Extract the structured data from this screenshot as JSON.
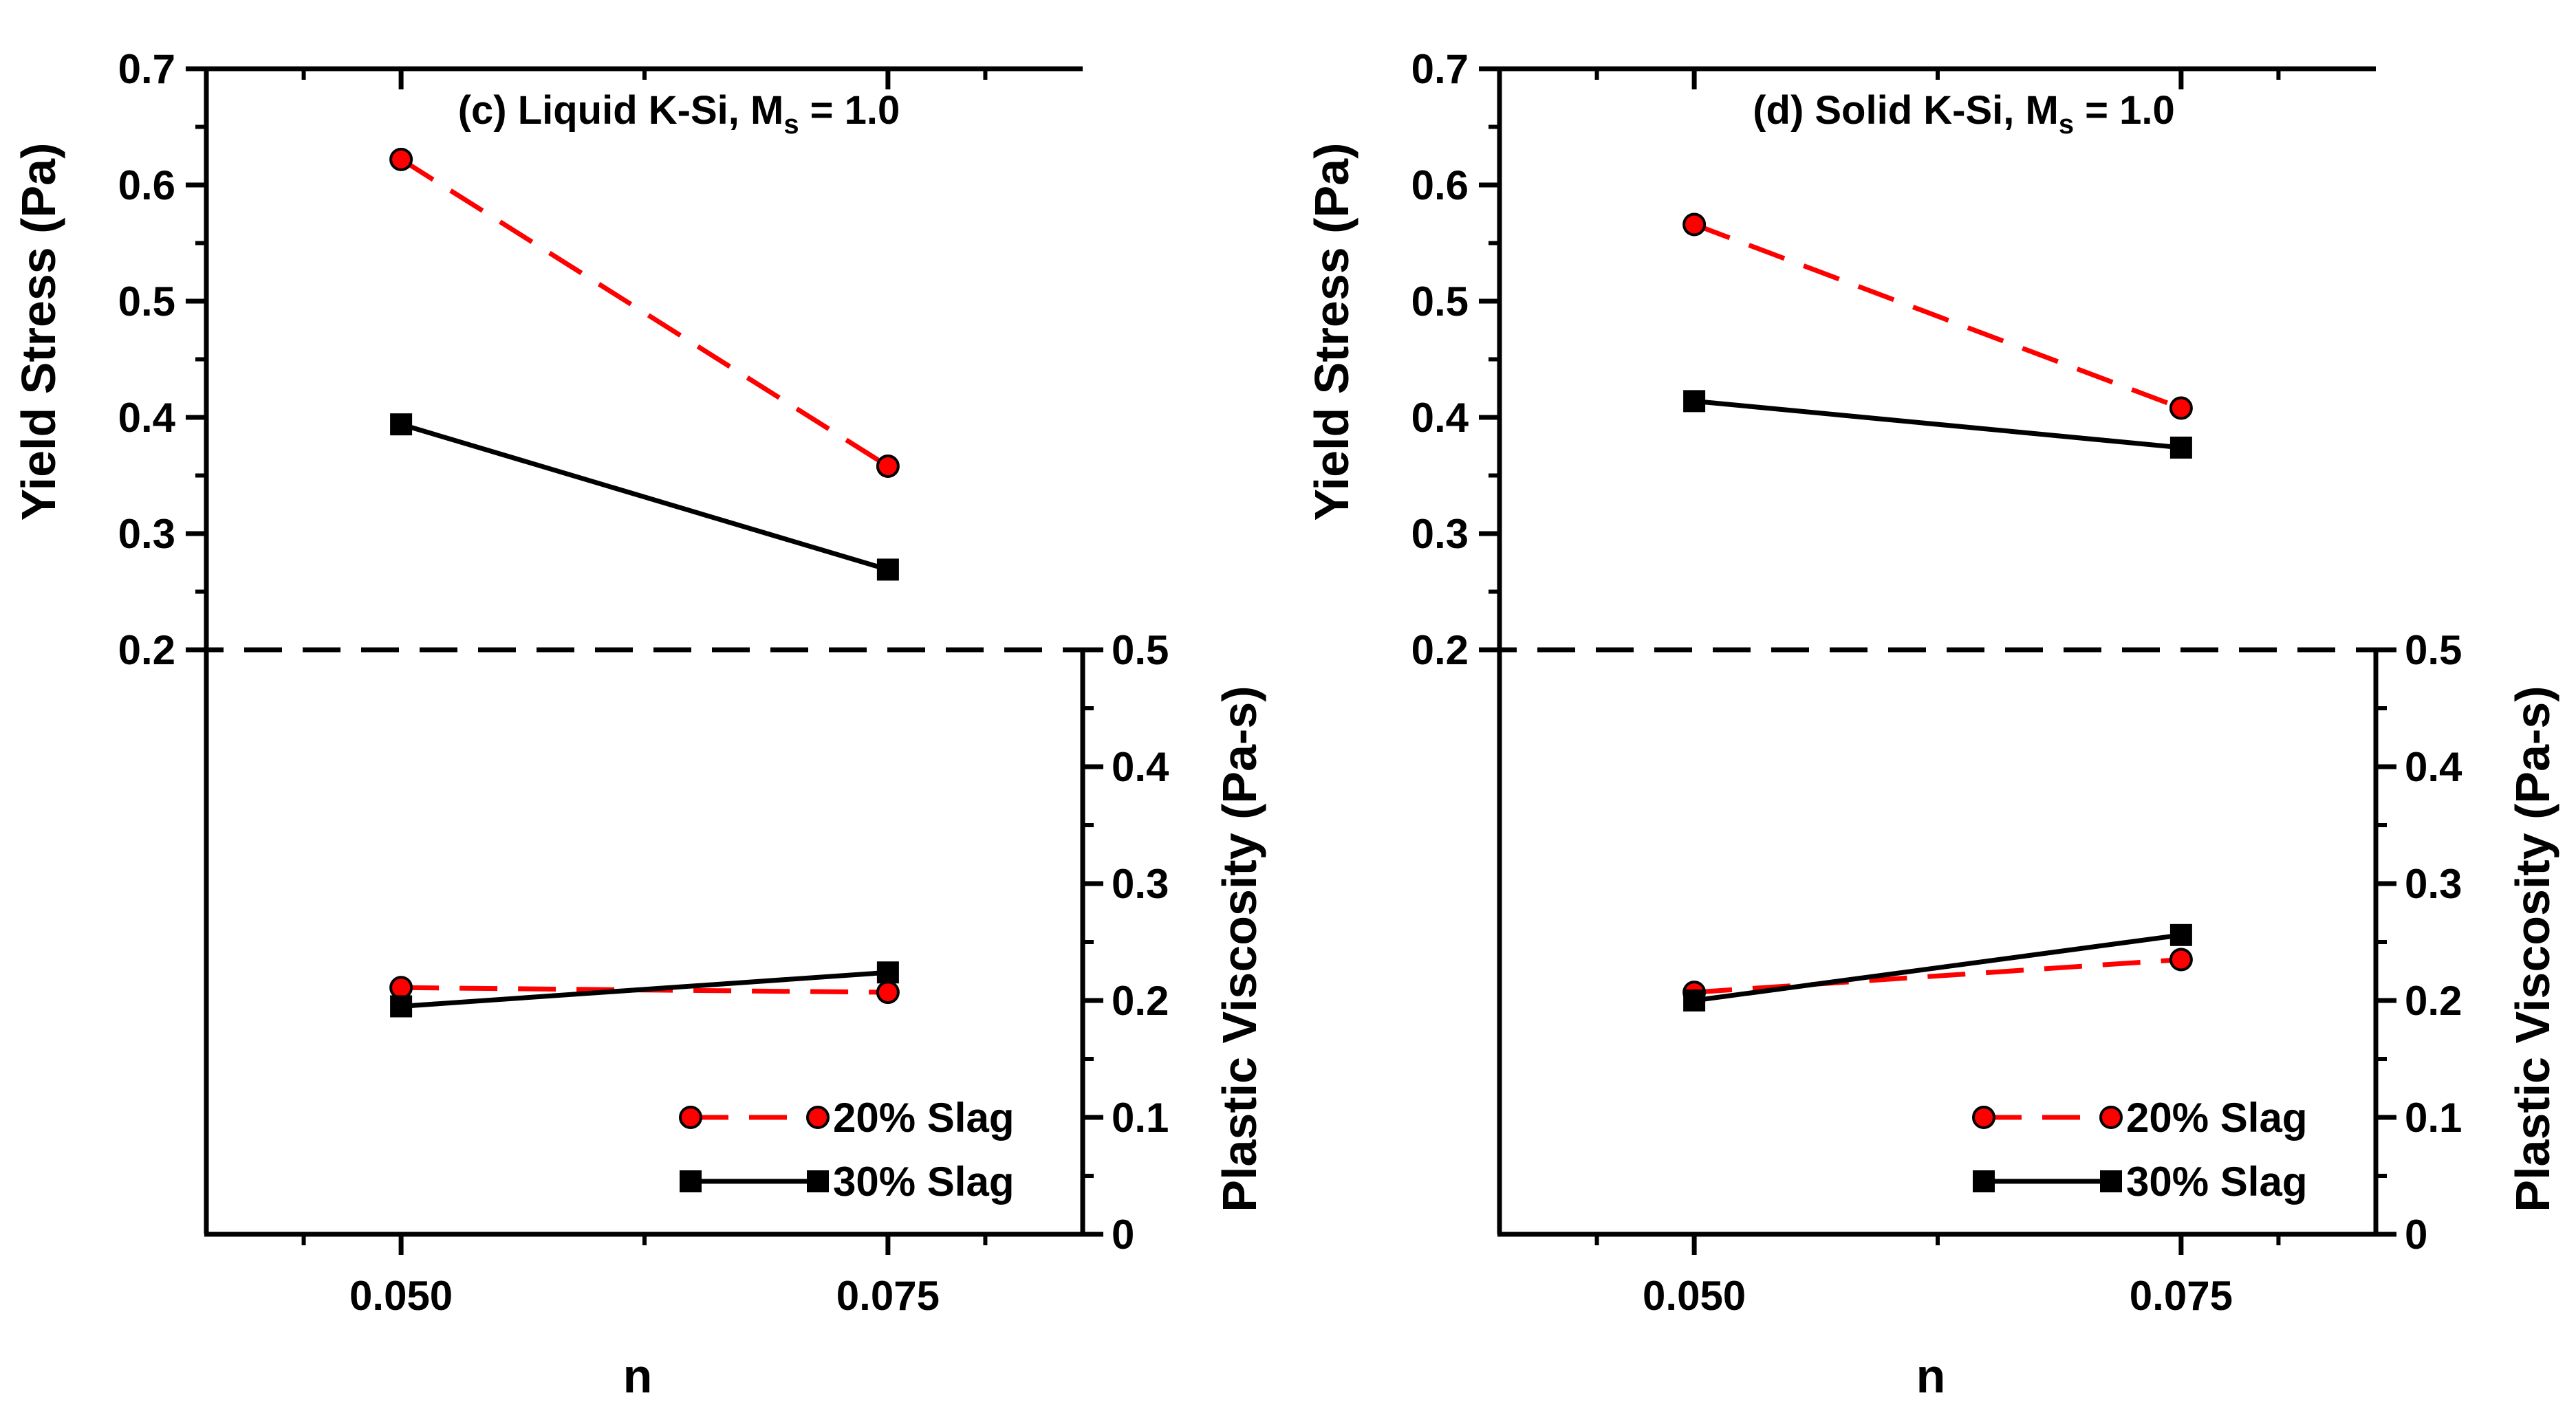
{
  "chart_data": [
    {
      "type": "line",
      "title": "(c) Liquid K-Si, M",
      "title_sub": "s",
      "title_suffix": " = 1.0",
      "xlabel": "n",
      "ylabel_left": "Yield Stress (Pa)",
      "ylabel_right": "Plastic Viscosity (Pa-s)",
      "x": [
        0.05,
        0.075
      ],
      "x_tick_labels": [
        "0.050",
        "0.075"
      ],
      "xlim": [
        0.04,
        0.085
      ],
      "ylim_yield": [
        0.2,
        0.7
      ],
      "ylim_viscosity": [
        0,
        0.5
      ],
      "y_ticks_yield": [
        "0.2",
        "0.3",
        "0.4",
        "0.5",
        "0.6",
        "0.7"
      ],
      "y_ticks_viscosity": [
        "0",
        "0.1",
        "0.2",
        "0.3",
        "0.4",
        "0.5"
      ],
      "divider": "dashed line at Yield Stress 0.2 / Plastic Viscosity 0.5",
      "yield_series": [
        {
          "name": "20% Slag",
          "values": [
            0.622,
            0.358
          ],
          "color": "#ff0000",
          "marker": "circle",
          "dash": true
        },
        {
          "name": "30% Slag",
          "values": [
            0.394,
            0.269
          ],
          "color": "#000000",
          "marker": "square",
          "dash": false
        }
      ],
      "viscosity_series": [
        {
          "name": "20% Slag",
          "values": [
            0.211,
            0.207
          ],
          "color": "#ff0000",
          "marker": "circle",
          "dash": true
        },
        {
          "name": "30% Slag",
          "values": [
            0.195,
            0.224
          ],
          "color": "#000000",
          "marker": "square",
          "dash": false
        }
      ],
      "legend": [
        "20% Slag",
        "30% Slag"
      ],
      "legend_position": "bottom-right"
    },
    {
      "type": "line",
      "title": "(d) Solid K-Si, M",
      "title_sub": "s",
      "title_suffix": " = 1.0",
      "xlabel": "n",
      "ylabel_left": "Yield Stress (Pa)",
      "ylabel_right": "Plastic Viscosity (Pa-s)",
      "x": [
        0.05,
        0.075
      ],
      "x_tick_labels": [
        "0.050",
        "0.075"
      ],
      "xlim": [
        0.04,
        0.085
      ],
      "ylim_yield": [
        0.2,
        0.7
      ],
      "ylim_viscosity": [
        0,
        0.5
      ],
      "y_ticks_yield": [
        "0.2",
        "0.3",
        "0.4",
        "0.5",
        "0.6",
        "0.7"
      ],
      "y_ticks_viscosity": [
        "0",
        "0.1",
        "0.2",
        "0.3",
        "0.4",
        "0.5"
      ],
      "divider": "dashed line at Yield Stress 0.2 / Plastic Viscosity 0.5",
      "yield_series": [
        {
          "name": "20% Slag",
          "values": [
            0.566,
            0.408
          ],
          "color": "#ff0000",
          "marker": "circle",
          "dash": true
        },
        {
          "name": "30% Slag",
          "values": [
            0.414,
            0.374
          ],
          "color": "#000000",
          "marker": "square",
          "dash": false
        }
      ],
      "viscosity_series": [
        {
          "name": "20% Slag",
          "values": [
            0.207,
            0.235
          ],
          "color": "#ff0000",
          "marker": "circle",
          "dash": true
        },
        {
          "name": "30% Slag",
          "values": [
            0.2,
            0.256
          ],
          "color": "#000000",
          "marker": "square",
          "dash": false
        }
      ],
      "legend": [
        "20% Slag",
        "30% Slag"
      ],
      "legend_position": "bottom-right"
    }
  ]
}
